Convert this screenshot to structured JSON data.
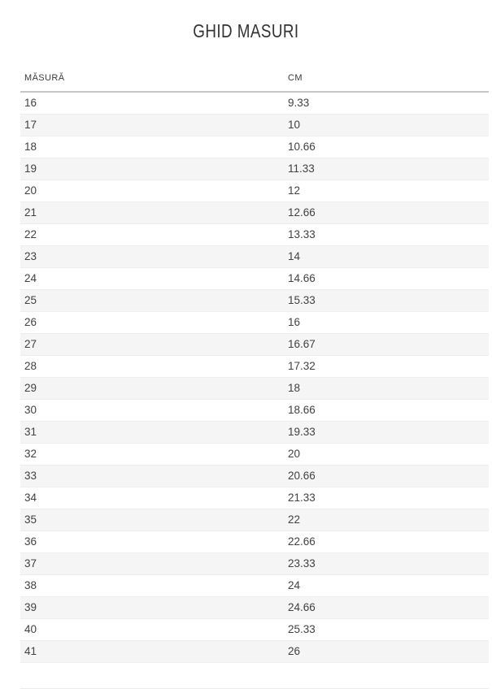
{
  "page": {
    "title": "GHID MASURI"
  },
  "table": {
    "columns": [
      {
        "label": "MĂSURĂ"
      },
      {
        "label": "CM"
      }
    ],
    "rows": [
      {
        "size": "16",
        "cm": "9.33"
      },
      {
        "size": "17",
        "cm": "10"
      },
      {
        "size": "18",
        "cm": "10.66"
      },
      {
        "size": "19",
        "cm": "11.33"
      },
      {
        "size": "20",
        "cm": "12"
      },
      {
        "size": "21",
        "cm": "12.66"
      },
      {
        "size": "22",
        "cm": "13.33"
      },
      {
        "size": "23",
        "cm": "14"
      },
      {
        "size": "24",
        "cm": "14.66"
      },
      {
        "size": "25",
        "cm": "15.33"
      },
      {
        "size": "26",
        "cm": "16"
      },
      {
        "size": "27",
        "cm": "16.67"
      },
      {
        "size": "28",
        "cm": "17.32"
      },
      {
        "size": "29",
        "cm": "18"
      },
      {
        "size": "30",
        "cm": "18.66"
      },
      {
        "size": "31",
        "cm": "19.33"
      },
      {
        "size": "32",
        "cm": "20"
      },
      {
        "size": "33",
        "cm": "20.66"
      },
      {
        "size": "34",
        "cm": "21.33"
      },
      {
        "size": "35",
        "cm": "22"
      },
      {
        "size": "36",
        "cm": "22.66"
      },
      {
        "size": "37",
        "cm": "23.33"
      },
      {
        "size": "38",
        "cm": "24"
      },
      {
        "size": "39",
        "cm": "24.66"
      },
      {
        "size": "40",
        "cm": "25.33"
      },
      {
        "size": "41",
        "cm": "26"
      }
    ]
  },
  "colors": {
    "row_alt_bg": "#f5f5f5",
    "row_border": "#ededed",
    "header_border": "#c6c6c6",
    "title_text": "#333333",
    "cell_text": "#414141"
  }
}
